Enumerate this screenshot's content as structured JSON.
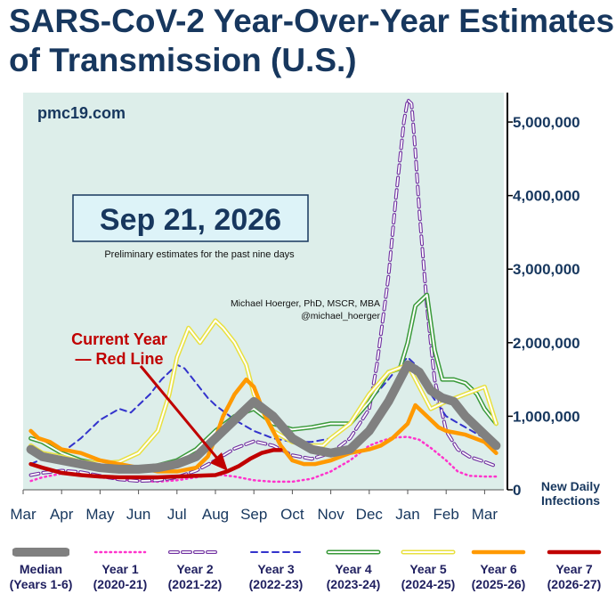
{
  "title": "SARS-CoV-2 Year-Over-Year Estimates of Transmission (U.S.)",
  "site": "pmc19.com",
  "date_badge": "Sep 21, 2026",
  "preliminary_note": "Preliminary estimates for the past nine days",
  "author_line1": "Michael Hoerger, PhD, MSCR, MBA",
  "author_line2": "@michael_hoerger",
  "callout_line1": "Current Year",
  "callout_line2": "— Red Line",
  "ylabel_line1": "New Daily",
  "ylabel_line2": "Infections",
  "colors": {
    "plot_bg": "#ddeeea",
    "title": "#17375e",
    "callout": "#c00000"
  },
  "chart_data": {
    "type": "line",
    "categories": [
      "Mar",
      "Apr",
      "May",
      "Jun",
      "Jul",
      "Aug",
      "Sep",
      "Oct",
      "Nov",
      "Dec",
      "Jan",
      "Feb",
      "Mar"
    ],
    "yticks": [
      0,
      1000000,
      2000000,
      3000000,
      4000000,
      5000000
    ],
    "ytick_labels": [
      "0",
      "1,000,000",
      "2,000,000",
      "3,000,000",
      "4,000,000",
      "5,000,000"
    ],
    "ylim": [
      0,
      5400000
    ],
    "xlim": [
      0,
      12.5
    ],
    "series": [
      {
        "key": "y1",
        "name": "Year 1",
        "years": "(2020-21)",
        "color": "#ff33cc",
        "style": "dotted",
        "x": [
          0.2,
          0.5,
          1,
          1.5,
          2,
          2.5,
          3,
          3.5,
          4,
          4.5,
          5,
          5.5,
          6,
          6.5,
          7,
          7.5,
          8,
          8.5,
          9,
          9.3,
          9.6,
          10,
          10.3,
          10.6,
          11,
          11.3,
          11.6,
          12,
          12.3
        ],
        "y": [
          120000,
          170000,
          220000,
          200000,
          170000,
          140000,
          120000,
          110000,
          130000,
          170000,
          210000,
          180000,
          130000,
          110000,
          110000,
          150000,
          250000,
          400000,
          600000,
          660000,
          710000,
          720000,
          680000,
          570000,
          400000,
          250000,
          190000,
          180000,
          180000
        ]
      },
      {
        "key": "y2",
        "name": "Year 2",
        "years": "(2021-22)",
        "color": "#7030a0",
        "style": "double-dash",
        "x": [
          0.2,
          0.5,
          1,
          1.5,
          2,
          2.5,
          3,
          3.5,
          4,
          4.5,
          5,
          5.5,
          6,
          6.5,
          7,
          7.5,
          8,
          8.5,
          9,
          9.2,
          9.5,
          9.7,
          9.9,
          10,
          10.1,
          10.2,
          10.3,
          10.5,
          10.7,
          11,
          11.3,
          11.6,
          12,
          12.3
        ],
        "y": [
          200000,
          230000,
          260000,
          240000,
          190000,
          140000,
          120000,
          130000,
          170000,
          260000,
          400000,
          560000,
          660000,
          600000,
          470000,
          420000,
          500000,
          700000,
          1100000,
          1700000,
          2900000,
          4000000,
          5000000,
          5300000,
          5250000,
          4600000,
          3800000,
          2500000,
          1500000,
          800000,
          550000,
          450000,
          380000,
          320000
        ]
      },
      {
        "key": "y3",
        "name": "Year 3",
        "years": "(2022-23)",
        "color": "#3333cc",
        "style": "dashed",
        "x": [
          0.2,
          0.5,
          1,
          1.5,
          2,
          2.5,
          2.8,
          3,
          3.3,
          3.6,
          4,
          4.2,
          4.5,
          4.8,
          5,
          5.5,
          6,
          6.5,
          7,
          7.5,
          8,
          8.5,
          9,
          9.5,
          9.8,
          10,
          10.3,
          10.6,
          11,
          11.5,
          12,
          12.3
        ],
        "y": [
          350000,
          420000,
          500000,
          700000,
          950000,
          1100000,
          1050000,
          1150000,
          1300000,
          1500000,
          1700000,
          1650000,
          1450000,
          1250000,
          1150000,
          950000,
          800000,
          700000,
          650000,
          650000,
          700000,
          900000,
          1200000,
          1500000,
          1700000,
          1800000,
          1650000,
          1300000,
          1000000,
          850000,
          700000,
          600000
        ]
      },
      {
        "key": "y4",
        "name": "Year 4",
        "years": "(2023-24)",
        "color": "#3a9a3a",
        "style": "double",
        "x": [
          0.2,
          0.5,
          1,
          1.5,
          2,
          2.5,
          3,
          3.5,
          4,
          4.5,
          5,
          5.5,
          6,
          6.5,
          7,
          7.5,
          8,
          8.5,
          9,
          9.5,
          9.8,
          10,
          10.2,
          10.5,
          10.7,
          10.9,
          11.2,
          11.5,
          11.8,
          12,
          12.3
        ],
        "y": [
          700000,
          650000,
          500000,
          400000,
          350000,
          320000,
          300000,
          330000,
          400000,
          550000,
          800000,
          1000000,
          1100000,
          900000,
          820000,
          850000,
          900000,
          900000,
          1200000,
          1600000,
          1650000,
          2000000,
          2500000,
          2650000,
          1900000,
          1500000,
          1500000,
          1450000,
          1300000,
          1100000,
          900000
        ]
      },
      {
        "key": "y5",
        "name": "Year 5",
        "years": "(2024-25)",
        "color": "#e8e040",
        "style": "double",
        "x": [
          0.2,
          0.5,
          1,
          1.5,
          2,
          2.5,
          3,
          3.5,
          3.8,
          4,
          4.3,
          4.6,
          5,
          5.2,
          5.5,
          5.8,
          6,
          6.5,
          7,
          7.5,
          7.8,
          8,
          8.5,
          9,
          9.5,
          10,
          10.3,
          10.6,
          11,
          11.5,
          12,
          12.3
        ],
        "y": [
          600000,
          500000,
          450000,
          380000,
          360000,
          380000,
          500000,
          800000,
          1300000,
          1800000,
          2200000,
          2000000,
          2300000,
          2200000,
          2000000,
          1700000,
          1300000,
          800000,
          650000,
          600000,
          600000,
          700000,
          900000,
          1300000,
          1600000,
          1700000,
          1400000,
          1100000,
          1200000,
          1300000,
          1400000,
          900000
        ]
      },
      {
        "key": "y6",
        "name": "Year 6",
        "years": "(2025-26)",
        "color": "#ff9900",
        "style": "solid",
        "x": [
          0.2,
          0.4,
          0.7,
          1,
          1.5,
          2,
          2.5,
          3,
          3.5,
          4,
          4.5,
          4.8,
          5,
          5.2,
          5.5,
          5.8,
          6,
          6.3,
          6.7,
          7,
          7.3,
          7.6,
          8,
          8.5,
          9,
          9.3,
          9.6,
          10,
          10.2,
          10.5,
          10.8,
          11,
          11.5,
          12,
          12.3
        ],
        "y": [
          800000,
          700000,
          650000,
          550000,
          500000,
          400000,
          350000,
          300000,
          250000,
          250000,
          300000,
          450000,
          700000,
          1000000,
          1300000,
          1500000,
          1400000,
          1000000,
          600000,
          400000,
          350000,
          350000,
          400000,
          500000,
          550000,
          600000,
          700000,
          900000,
          1150000,
          1000000,
          850000,
          800000,
          750000,
          650000,
          500000
        ]
      },
      {
        "key": "median",
        "name": "Median",
        "years": "(Years 1-6)",
        "color": "#808080",
        "style": "thick",
        "x": [
          0.2,
          0.5,
          1,
          1.5,
          2,
          2.5,
          3,
          3.5,
          4,
          4.5,
          5,
          5.5,
          6,
          6.5,
          7,
          7.5,
          8,
          8.5,
          9,
          9.5,
          9.8,
          10,
          10.3,
          10.6,
          10.9,
          11.2,
          11.5,
          12,
          12.3
        ],
        "y": [
          550000,
          450000,
          400000,
          350000,
          300000,
          280000,
          280000,
          300000,
          350000,
          450000,
          700000,
          950000,
          1200000,
          1000000,
          700000,
          550000,
          500000,
          550000,
          800000,
          1200000,
          1500000,
          1700000,
          1600000,
          1350000,
          1250000,
          1200000,
          1000000,
          750000,
          600000
        ]
      },
      {
        "key": "y7",
        "name": "Year 7",
        "years": "(2026-27)",
        "color": "#c00000",
        "style": "current",
        "x": [
          0.2,
          0.5,
          1,
          1.5,
          2,
          2.5,
          3,
          3.5,
          4,
          4.5,
          5,
          5.3,
          5.6,
          5.9,
          6.2,
          6.5,
          6.7
        ],
        "y": [
          350000,
          300000,
          230000,
          200000,
          180000,
          170000,
          170000,
          170000,
          180000,
          190000,
          200000,
          250000,
          320000,
          420000,
          500000,
          540000,
          540000
        ]
      }
    ]
  }
}
